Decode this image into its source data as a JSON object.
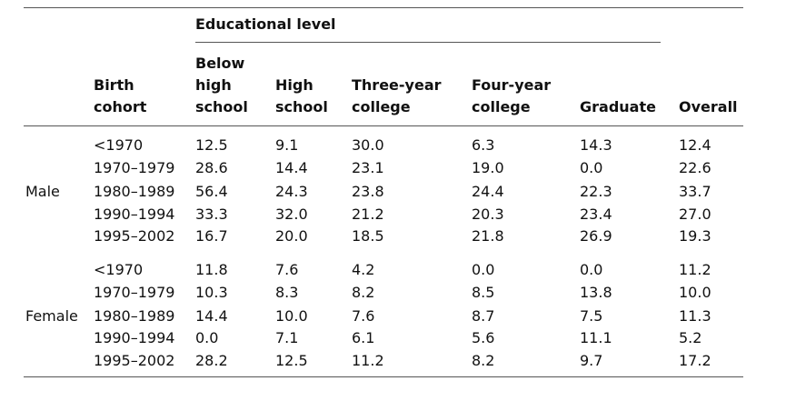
{
  "table": {
    "group_header": "Educational level",
    "columns": {
      "birth_cohort": [
        "Birth",
        "cohort"
      ],
      "below_high_school": [
        "Below",
        "high",
        "school"
      ],
      "high_school": [
        "High",
        "school"
      ],
      "three_year_college": [
        "Three-year",
        "college"
      ],
      "four_year_college": [
        "Four-year",
        "college"
      ],
      "graduate": [
        "Graduate"
      ],
      "overall": [
        "Overall"
      ]
    },
    "groups": [
      {
        "label": "Male",
        "rows": [
          {
            "cohort": "<1970",
            "values": [
              "12.5",
              "9.1",
              "30.0",
              "6.3",
              "14.3",
              "12.4"
            ]
          },
          {
            "cohort": "1970–1979",
            "values": [
              "28.6",
              "14.4",
              "23.1",
              "19.0",
              "0.0",
              "22.6"
            ]
          },
          {
            "cohort": "1980–1989",
            "values": [
              "56.4",
              "24.3",
              "23.8",
              "24.4",
              "22.3",
              "33.7"
            ]
          },
          {
            "cohort": "1990–1994",
            "values": [
              "33.3",
              "32.0",
              "21.2",
              "20.3",
              "23.4",
              "27.0"
            ]
          },
          {
            "cohort": "1995–2002",
            "values": [
              "16.7",
              "20.0",
              "18.5",
              "21.8",
              "26.9",
              "19.3"
            ]
          }
        ]
      },
      {
        "label": "Female",
        "rows": [
          {
            "cohort": "<1970",
            "values": [
              "11.8",
              "7.6",
              "4.2",
              "0.0",
              "0.0",
              "11.2"
            ]
          },
          {
            "cohort": "1970–1979",
            "values": [
              "10.3",
              "8.3",
              "8.2",
              "8.5",
              "13.8",
              "10.0"
            ]
          },
          {
            "cohort": "1980–1989",
            "values": [
              "14.4",
              "10.0",
              "7.6",
              "8.7",
              "7.5",
              "11.3"
            ]
          },
          {
            "cohort": "1990–1994",
            "values": [
              "0.0",
              "7.1",
              "6.1",
              "5.6",
              "11.1",
              "5.2"
            ]
          },
          {
            "cohort": "1995–2002",
            "values": [
              "28.2",
              "12.5",
              "11.2",
              "8.2",
              "9.7",
              "17.2"
            ]
          }
        ]
      }
    ]
  }
}
